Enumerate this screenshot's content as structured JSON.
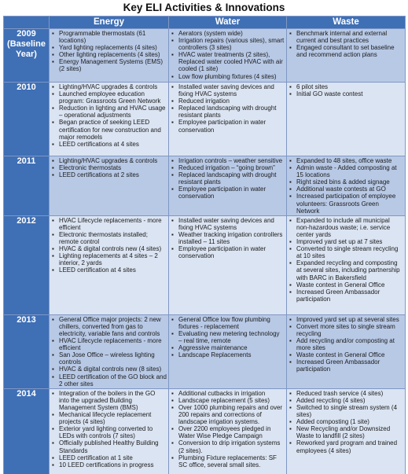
{
  "title": "Key ELI Activities & Innovations",
  "columns": [
    "Energy",
    "Water",
    "Waste"
  ],
  "rows": [
    {
      "year": "2009 (Baseline Year)",
      "energy": [
        "Programmable thermostats (61 locations)",
        "Yard lighting replacements (4 sites)",
        "Other lighting replacements (4 sites)",
        "Energy Management Systems (EMS) (2 sites)"
      ],
      "water": [
        "Aerators (system wide)",
        "Irrigation repairs (various sites), smart controllers (3 sites)",
        "HVAC water treatments (2 sites), Replaced water cooled HVAC with air cooled (1 site)",
        "Low flow plumbing fixtures (4 sites)"
      ],
      "waste": [
        "Benchmark internal and external current and best practices",
        "Engaged consultant to set baseline and recommend action plans"
      ]
    },
    {
      "year": "2010",
      "energy": [
        "Lighting/HVAC upgrades & controls",
        "Launched employee education program: Grassroots Green Network",
        "Reduction in lighting and HVAC usage – operational adjustments",
        "Began practice of seeking LEED certification for new construction and major remodels",
        "LEED certifications at 4 sites"
      ],
      "water": [
        "Installed water saving devices and fixing HVAC systems",
        "Reduced irrigation",
        "Replaced landscaping with drought resistant plants",
        " Employee participation in water conservation"
      ],
      "waste": [
        "6 pilot sites",
        "Initial GO waste contest"
      ]
    },
    {
      "year": "2011",
      "energy": [
        "Lighting/HVAC upgrades & controls",
        "Electronic thermostats",
        "LEED certifications at 2 sites"
      ],
      "water": [
        "Irrigation controls – weather sensitive",
        "Reduced irrigation – “going brown”",
        "Replaced landscaping with drought resistant plants",
        "Employee participation in water conservation"
      ],
      "waste": [
        "Expanded to 48 sites, office waste",
        "Admin waste - Added composting at 15 locations",
        "Right sized bins & added signage",
        "Additional waste contests at GO",
        "Increased participation of employee volunteers: Grassroots Green Network"
      ]
    },
    {
      "year": "2012",
      "energy": [
        "HVAC Lifecycle replacements - more efficient",
        "Electronic thermostats installed; remote control",
        "HVAC & digital controls new (4 sites)",
        "Lighting replacements at 4 sites – 2 interior, 2 yards",
        "LEED certification at 4 sites"
      ],
      "water": [
        "Installed water saving devices and fixing HVAC systems",
        "Weather tracking irrigation controllers installed – 11 sites",
        "Employee participation in water conservation"
      ],
      "waste": [
        "Expanded to include all municipal non-hazardous waste; i.e. service center yards",
        "Improved yard set up at 7 sites",
        "Converted to single stream recycling at 10 sites",
        "Expanded recycling and composting at several sites, including partnership with BARC in Bakersfield",
        "Waste contest in General Office",
        "Increased Green Ambassador participation"
      ]
    },
    {
      "year": "2013",
      "energy": [
        "General Office major projects: 2 new chillers, converted from gas to electricity, variable fans and controls",
        "HVAC Lifecycle replacements - more efficient",
        "San Jose Office – wireless lighting controls",
        "HVAC & digital controls new (8 sites)",
        "LEED certification of the GO block and 2 other sites"
      ],
      "water": [
        "General Office low flow plumbing fixtures - replacement",
        "Evaluating new metering technology – real time, remote",
        "Aggressive maintenance",
        "Landscape Replacements"
      ],
      "waste": [
        "Improved yard set up at several sites",
        "Convert more sites to single stream recycling",
        "Add recycling and/or composting at more sites",
        "Waste contest in General Office",
        "Increased Green Ambassador participation"
      ]
    },
    {
      "year": "2014",
      "energy": [
        "Integration of the boilers in the GO into the upgraded Building Management System (BMS)",
        "Mechanical lifecycle replacement projects (4 sites)",
        "Exterior yard lighting converted to LEDs with controls (7 sites)",
        "Officially published Healthy Building Standards",
        "LEED certification at 1 site",
        "10 LEED certifications in progress"
      ],
      "water": [
        "Additional cutbacks in irrigation",
        "Landscape replacement (5 sites)",
        "Over 1000 plumbing repairs and over 200 repairs and corrections of landscape irrigation systems.",
        "Over 2200 employees pledged in Water Wise Pledge Campaign",
        "Conversion to drip irrigation systems (2 sites).",
        "Plumbing Fixture replacements: SF SC office, several small sites."
      ],
      "waste": [
        "Reduced trash service (4 sites)",
        "Added recycling (4 sites)",
        "Switched to single stream system (4 sites)",
        "Added composting (1 site)",
        "New Recycling and/or Downsized Waste to landfill (2 sites)",
        "Reworked yard program and trained employees (4 sites)"
      ]
    }
  ]
}
